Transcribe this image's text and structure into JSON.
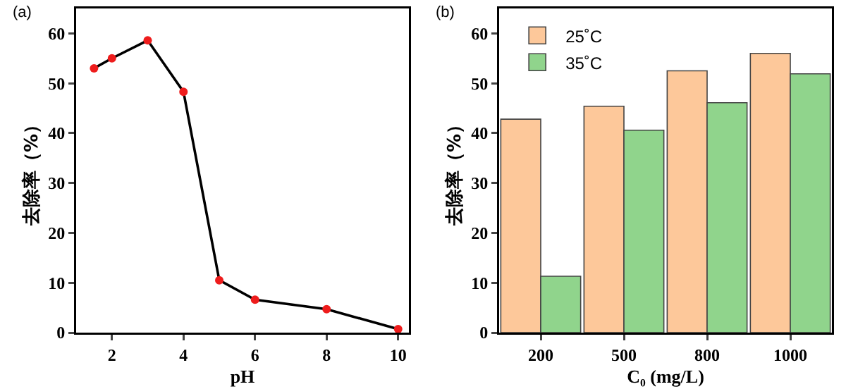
{
  "chart_data": [
    {
      "type": "line",
      "annotations": [
        "(a)"
      ],
      "xlabel": "pH",
      "ylabel": "去除率（%）",
      "x": [
        1.5,
        2,
        3,
        4,
        5,
        6,
        8,
        10
      ],
      "xlim": [
        1,
        10.3
      ],
      "xticks": [
        2,
        4,
        6,
        8,
        10
      ],
      "ylim": [
        0,
        65
      ],
      "yticks": [
        0,
        10,
        20,
        30,
        40,
        50,
        60
      ],
      "marker": "circle",
      "grid": false,
      "legend": false,
      "series": [
        {
          "color": "#000000",
          "colors": [
            "#ee1c1c",
            "#ee1c1c",
            "#ee1c1c",
            "#ee1c1c",
            "#ee1c1c",
            "#ee1c1c",
            "#ee1c1c",
            "#ee1c1c"
          ],
          "values": [
            53,
            55,
            58.6,
            48.3,
            10.5,
            6.6,
            4.7,
            0.7
          ]
        }
      ]
    },
    {
      "type": "bar",
      "annotations": [
        "(b)"
      ],
      "xlabel": "C₀ (mg/L)",
      "ylabel": "去除率（%）",
      "categories": [
        "200",
        "500",
        "800",
        "1000"
      ],
      "ylim": [
        0,
        65
      ],
      "yticks": [
        0,
        10,
        20,
        30,
        40,
        50,
        60
      ],
      "grid": false,
      "legend": "top left",
      "series": [
        {
          "name": "25˚C",
          "color": "#fdc89a",
          "values": [
            42.8,
            45.4,
            52.5,
            56
          ]
        },
        {
          "name": "35˚C",
          "color": "#90d48c",
          "values": [
            11.3,
            40.6,
            46.1,
            51.9
          ]
        }
      ]
    }
  ]
}
